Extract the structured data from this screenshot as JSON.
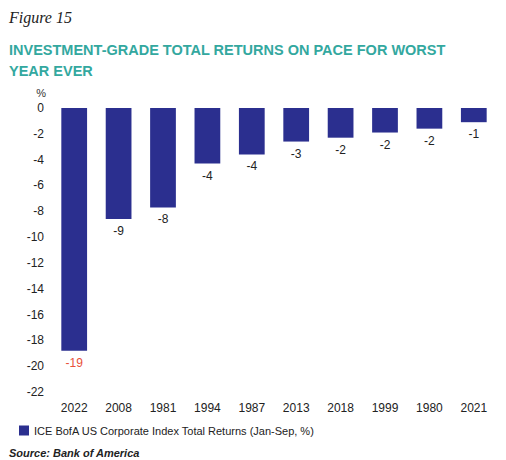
{
  "chart_data": {
    "type": "bar",
    "figure": "Figure 15",
    "title": "INVESTMENT-GRADE TOTAL RETURNS ON PACE FOR WORST YEAR EVER",
    "ylabel": "%",
    "source": "Source: Bank of America",
    "categories": [
      "2022",
      "2008",
      "1981",
      "1994",
      "1987",
      "2013",
      "2018",
      "1999",
      "1980",
      "2021"
    ],
    "series": [
      {
        "name": "ICE BofA US Corporate Index Total Returns (Jan-Sep, %)",
        "color": "#2b2f8f",
        "values": [
          -18.8,
          -8.6,
          -7.7,
          -4.3,
          -3.6,
          -2.6,
          -2.3,
          -1.9,
          -1.6,
          -1.1
        ],
        "value_labels": [
          "-19",
          "-9",
          "-8",
          "-4",
          "-4",
          "-3",
          "-2",
          "-2",
          "-2",
          "-1"
        ]
      }
    ],
    "ylim": [
      -22,
      0
    ],
    "yticks": [
      0,
      -2,
      -4,
      -6,
      -8,
      -10,
      -12,
      -14,
      -16,
      -18,
      -20,
      -22
    ],
    "grid": false,
    "data_labels": true,
    "legend": "bottom"
  }
}
